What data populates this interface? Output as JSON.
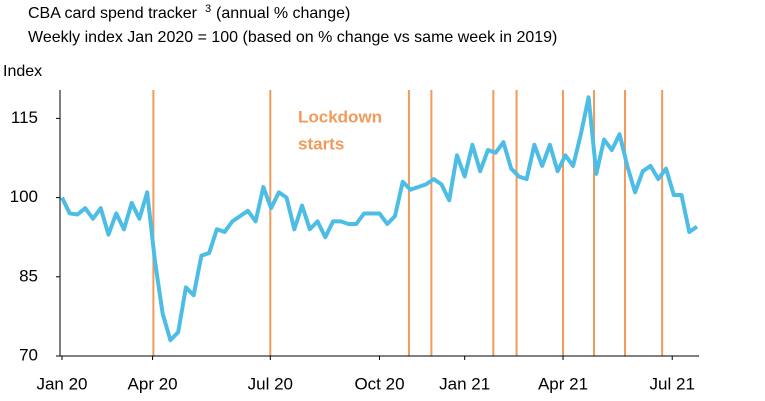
{
  "chart_data": {
    "type": "line",
    "title": "CBA card spend tracker",
    "title_superscript": "3",
    "title_suffix": "(annual % change)",
    "subtitle": "Weekly index Jan 2020 = 100 (based on % change vs same week in 2019)",
    "y_label": "Index",
    "annotation": [
      "Lockdown",
      "starts"
    ],
    "x": [
      0,
      1,
      2,
      3,
      4,
      5,
      6,
      7,
      8,
      9,
      10,
      11,
      12,
      13,
      14,
      15,
      16,
      17,
      18,
      19,
      20,
      21,
      22,
      23,
      24,
      25,
      26,
      27,
      28,
      29,
      30,
      31,
      32,
      33,
      34,
      35,
      36,
      37,
      38,
      39,
      40,
      41,
      42,
      43,
      44,
      45,
      46,
      47,
      48,
      49,
      50,
      51,
      52,
      53,
      54,
      55,
      56,
      57,
      58,
      59,
      60,
      61,
      62,
      63,
      64,
      65,
      66,
      67,
      68,
      69,
      70,
      71,
      72,
      73,
      74,
      75,
      76,
      77,
      78,
      79,
      80,
      81,
      82
    ],
    "series": [
      {
        "color": "#4dbde6",
        "values": [
          100,
          97,
          96.8,
          98,
          96,
          98,
          93,
          97,
          94,
          99,
          96,
          101,
          88,
          78,
          73,
          74.5,
          83,
          81.5,
          89,
          89.5,
          94,
          93.5,
          95.5,
          96.5,
          97.5,
          95.5,
          102,
          98,
          101,
          100,
          94,
          98.5,
          94,
          95.5,
          92.5,
          95.5,
          95.5,
          95,
          95,
          97,
          97,
          97,
          95,
          96.5,
          103,
          101.5,
          102,
          102.5,
          103.5,
          102.5,
          99.5,
          108,
          104,
          110,
          105,
          109,
          108.5,
          110.5,
          105.5,
          104,
          103.5,
          110,
          106,
          110,
          105,
          108,
          106,
          112,
          119,
          104.5,
          111,
          109,
          112,
          106,
          101,
          105,
          106,
          103.5,
          105.5,
          100.5,
          100.5,
          93.5,
          94.5
        ]
      }
    ],
    "lockdowns": {
      "color": "#f29a5b",
      "x": [
        11.8,
        26.9,
        44.8,
        47.7,
        55.7,
        58.7,
        64.7,
        68.7,
        72.7,
        77.5
      ]
    },
    "xlim": [
      0,
      82
    ],
    "xticks": [
      {
        "value": 0,
        "label": "Jan 20"
      },
      {
        "value": 11.7,
        "label": "Apr 20"
      },
      {
        "value": 26.9,
        "label": "Jul 20"
      },
      {
        "value": 41,
        "label": "Oct 20"
      },
      {
        "value": 52,
        "label": "Jan 21"
      },
      {
        "value": 64.7,
        "label": "Apr 21"
      },
      {
        "value": 78.8,
        "label": "Jul 21"
      }
    ],
    "ylim": [
      70,
      120
    ],
    "yticks": [
      70,
      85,
      100,
      115
    ]
  }
}
